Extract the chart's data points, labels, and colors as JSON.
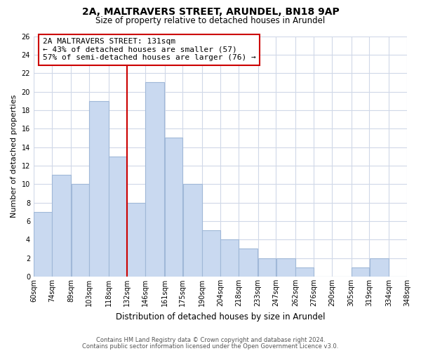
{
  "title": "2A, MALTRAVERS STREET, ARUNDEL, BN18 9AP",
  "subtitle": "Size of property relative to detached houses in Arundel",
  "xlabel": "Distribution of detached houses by size in Arundel",
  "ylabel": "Number of detached properties",
  "bar_labels": [
    "60sqm",
    "74sqm",
    "89sqm",
    "103sqm",
    "118sqm",
    "132sqm",
    "146sqm",
    "161sqm",
    "175sqm",
    "190sqm",
    "204sqm",
    "218sqm",
    "233sqm",
    "247sqm",
    "262sqm",
    "276sqm",
    "290sqm",
    "305sqm",
    "319sqm",
    "334sqm",
    "348sqm"
  ],
  "bar_heights": [
    7,
    11,
    10,
    19,
    13,
    8,
    21,
    15,
    10,
    5,
    4,
    3,
    2,
    2,
    1,
    0,
    0,
    1,
    2,
    0
  ],
  "bin_edges": [
    60,
    74,
    89,
    103,
    118,
    132,
    146,
    161,
    175,
    190,
    204,
    218,
    233,
    247,
    262,
    276,
    290,
    305,
    319,
    334,
    348
  ],
  "bar_color": "#c9d9f0",
  "bar_edge_color": "#a0b8d8",
  "property_line_x": 132,
  "property_line_color": "#cc0000",
  "annotation_line1": "2A MALTRAVERS STREET: 131sqm",
  "annotation_line2": "← 43% of detached houses are smaller (57)",
  "annotation_line3": "57% of semi-detached houses are larger (76) →",
  "annotation_box_color": "#ffffff",
  "annotation_box_edge_color": "#cc0000",
  "ylim": [
    0,
    26
  ],
  "yticks": [
    0,
    2,
    4,
    6,
    8,
    10,
    12,
    14,
    16,
    18,
    20,
    22,
    24,
    26
  ],
  "footnote1": "Contains HM Land Registry data © Crown copyright and database right 2024.",
  "footnote2": "Contains public sector information licensed under the Open Government Licence v3.0.",
  "background_color": "#ffffff",
  "grid_color": "#d0d8e8",
  "title_fontsize": 10,
  "subtitle_fontsize": 8.5,
  "annotation_fontsize": 8,
  "axis_label_fontsize": 8,
  "tick_fontsize": 7
}
